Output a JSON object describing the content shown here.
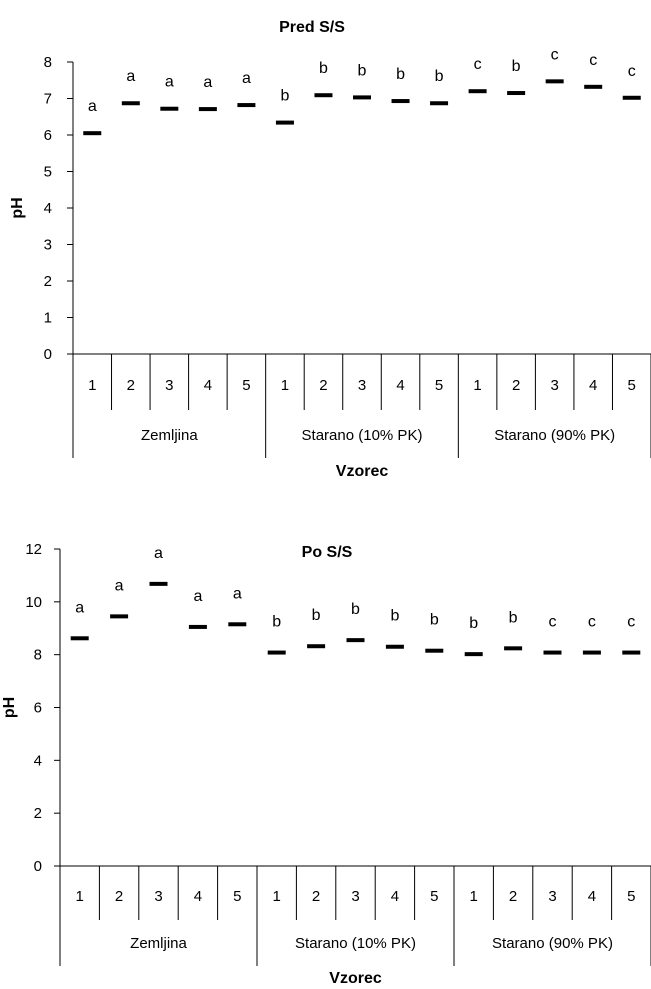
{
  "chart_data": [
    {
      "type": "scatter",
      "title": "Pred S/S",
      "xlabel": "Vzorec",
      "ylabel": "pH",
      "ylim": [
        0,
        8
      ],
      "yticks": [
        0,
        1,
        2,
        3,
        4,
        5,
        6,
        7,
        8
      ],
      "categories": [
        "1",
        "2",
        "3",
        "4",
        "5",
        "1",
        "2",
        "3",
        "4",
        "5",
        "1",
        "2",
        "3",
        "4",
        "5"
      ],
      "groups": [
        "Zemljina",
        "Starano (10% PK)",
        "Starano (90% PK)"
      ],
      "values": [
        6.05,
        6.87,
        6.72,
        6.71,
        6.82,
        6.34,
        7.09,
        7.03,
        6.93,
        6.87,
        7.2,
        7.15,
        7.47,
        7.32,
        7.02
      ],
      "letters": [
        "a",
        "a",
        "a",
        "a",
        "a",
        "b",
        "b",
        "b",
        "b",
        "b",
        "c",
        "b",
        "c",
        "c",
        "c"
      ],
      "color": "#000000"
    },
    {
      "type": "scatter",
      "title": "Po S/S",
      "xlabel": "Vzorec",
      "ylabel": "pH",
      "ylim": [
        0,
        12
      ],
      "yticks": [
        0,
        2,
        4,
        6,
        8,
        10,
        12
      ],
      "categories": [
        "1",
        "2",
        "3",
        "4",
        "5",
        "1",
        "2",
        "3",
        "4",
        "5",
        "1",
        "2",
        "3",
        "4",
        "5"
      ],
      "groups": [
        "Zemljina",
        "Starano (10% PK)",
        "Starano (90% PK)"
      ],
      "values": [
        8.62,
        9.45,
        10.68,
        9.05,
        9.15,
        8.08,
        8.32,
        8.55,
        8.3,
        8.15,
        8.02,
        8.24,
        8.08,
        8.08,
        8.08
      ],
      "letters": [
        "a",
        "a",
        "a",
        "a",
        "a",
        "b",
        "b",
        "b",
        "b",
        "b",
        "b",
        "b",
        "c",
        "c",
        "c"
      ],
      "color": "#000000"
    }
  ]
}
